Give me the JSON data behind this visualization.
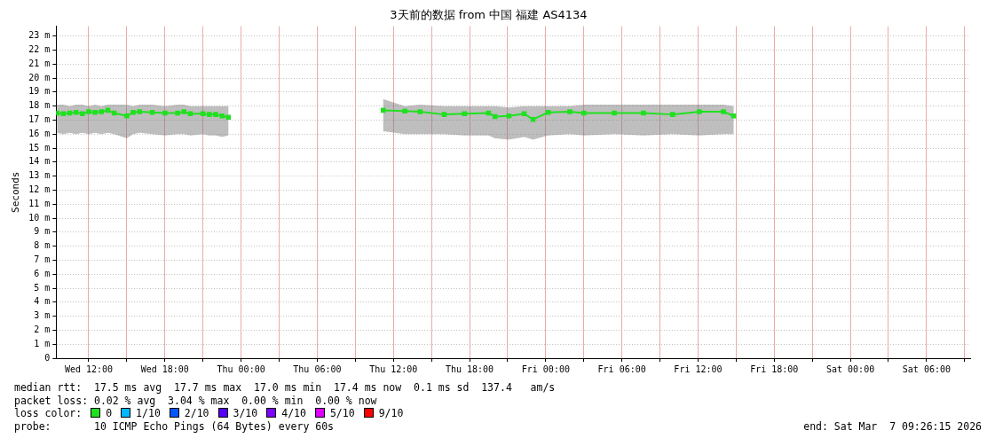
{
  "chart_data": {
    "type": "line",
    "title": "3天前的数据 from 中国 福建 AS4134",
    "ylabel": "Seconds",
    "xlim": [
      "2026-03-04T09:26",
      "2026-03-07T09:26"
    ],
    "ylim": [
      0,
      23.7
    ],
    "yticks": [
      {
        "value": 0,
        "label": "0"
      },
      {
        "value": 1,
        "label": "1 m"
      },
      {
        "value": 2,
        "label": "2 m"
      },
      {
        "value": 3,
        "label": "3 m"
      },
      {
        "value": 4,
        "label": "4 m"
      },
      {
        "value": 5,
        "label": "5 m"
      },
      {
        "value": 6,
        "label": "6 m"
      },
      {
        "value": 7,
        "label": "7 m"
      },
      {
        "value": 8,
        "label": "8 m"
      },
      {
        "value": 9,
        "label": "9 m"
      },
      {
        "value": 10,
        "label": "10 m"
      },
      {
        "value": 11,
        "label": "11 m"
      },
      {
        "value": 12,
        "label": "12 m"
      },
      {
        "value": 13,
        "label": "13 m"
      },
      {
        "value": 14,
        "label": "14 m"
      },
      {
        "value": 15,
        "label": "15 m"
      },
      {
        "value": 16,
        "label": "16 m"
      },
      {
        "value": 17,
        "label": "17 m"
      },
      {
        "value": 18,
        "label": "18 m"
      },
      {
        "value": 19,
        "label": "19 m"
      },
      {
        "value": 20,
        "label": "20 m"
      },
      {
        "value": 21,
        "label": "21 m"
      },
      {
        "value": 22,
        "label": "22 m"
      },
      {
        "value": 23,
        "label": "23 m"
      }
    ],
    "xticks": [
      {
        "value": "2026-03-04T12:00",
        "label": "Wed 12:00"
      },
      {
        "value": "2026-03-04T15:00",
        "label": null
      },
      {
        "value": "2026-03-04T18:00",
        "label": "Wed 18:00"
      },
      {
        "value": "2026-03-04T21:00",
        "label": null
      },
      {
        "value": "2026-03-05T00:00",
        "label": "Thu 00:00"
      },
      {
        "value": "2026-03-05T03:00",
        "label": null
      },
      {
        "value": "2026-03-05T06:00",
        "label": "Thu 06:00"
      },
      {
        "value": "2026-03-05T09:00",
        "label": null
      },
      {
        "value": "2026-03-05T12:00",
        "label": "Thu 12:00"
      },
      {
        "value": "2026-03-05T15:00",
        "label": null
      },
      {
        "value": "2026-03-05T18:00",
        "label": "Thu 18:00"
      },
      {
        "value": "2026-03-05T21:00",
        "label": null
      },
      {
        "value": "2026-03-06T00:00",
        "label": "Fri 00:00"
      },
      {
        "value": "2026-03-06T03:00",
        "label": null
      },
      {
        "value": "2026-03-06T06:00",
        "label": "Fri 06:00"
      },
      {
        "value": "2026-03-06T09:00",
        "label": null
      },
      {
        "value": "2026-03-06T12:00",
        "label": "Fri 12:00"
      },
      {
        "value": "2026-03-06T15:00",
        "label": null
      },
      {
        "value": "2026-03-06T18:00",
        "label": "Fri 18:00"
      },
      {
        "value": "2026-03-06T21:00",
        "label": null
      },
      {
        "value": "2026-03-07T00:00",
        "label": "Sat 00:00"
      },
      {
        "value": "2026-03-07T03:00",
        "label": null
      },
      {
        "value": "2026-03-07T06:00",
        "label": "Sat 06:00"
      },
      {
        "value": "2026-03-07T09:00",
        "label": null
      }
    ],
    "grid": true,
    "legend": false,
    "marker": "square",
    "line_style": "solid",
    "series": [
      {
        "color": "#20e020",
        "x": [
          "2026-03-04T09:30",
          "2026-03-04T10:00",
          "2026-03-04T10:30",
          "2026-03-04T11:00",
          "2026-03-04T11:30",
          "2026-03-04T12:00",
          "2026-03-04T12:30",
          "2026-03-04T13:00",
          "2026-03-04T13:30",
          "2026-03-04T14:00",
          "2026-03-04T15:00",
          "2026-03-04T15:30",
          "2026-03-04T16:00",
          "2026-03-04T17:00",
          "2026-03-04T18:00",
          "2026-03-04T19:00",
          "2026-03-04T19:30",
          "2026-03-04T20:00",
          "2026-03-04T21:00",
          "2026-03-04T21:30",
          "2026-03-04T22:00",
          "2026-03-04T22:30",
          "2026-03-04T23:00",
          "2026-03-05T05:00",
          "2026-03-05T11:12",
          "2026-03-05T12:54",
          "2026-03-05T14:06",
          "2026-03-05T16:00",
          "2026-03-05T17:36",
          "2026-03-05T19:30",
          "2026-03-05T20:00",
          "2026-03-05T21:06",
          "2026-03-05T22:18",
          "2026-03-05T23:00",
          "2026-03-06T00:12",
          "2026-03-06T01:54",
          "2026-03-06T03:00",
          "2026-03-06T05:24",
          "2026-03-06T07:42",
          "2026-03-06T10:00",
          "2026-03-06T12:06",
          "2026-03-06T14:00",
          "2026-03-06T14:48"
        ],
        "values": [
          17.5,
          17.45,
          17.5,
          17.55,
          17.45,
          17.6,
          17.55,
          17.6,
          17.7,
          17.5,
          17.3,
          17.55,
          17.6,
          17.55,
          17.5,
          17.5,
          17.6,
          17.45,
          17.45,
          17.4,
          17.4,
          17.3,
          17.2,
          null,
          17.7,
          17.65,
          17.6,
          17.4,
          17.45,
          17.5,
          17.25,
          17.3,
          17.45,
          17.05,
          17.55,
          17.6,
          17.5,
          17.5,
          17.5,
          17.4,
          17.6,
          17.6,
          17.3
        ],
        "lower": [
          16.1,
          16.0,
          16.1,
          16.0,
          16.1,
          16.0,
          16.1,
          16.0,
          16.1,
          16.0,
          15.7,
          16.0,
          16.1,
          16.0,
          15.9,
          16.0,
          16.0,
          15.9,
          16.0,
          15.9,
          15.9,
          15.8,
          15.9,
          null,
          16.2,
          16.0,
          16.0,
          16.0,
          15.9,
          15.9,
          15.7,
          15.6,
          15.8,
          15.6,
          15.9,
          16.0,
          15.9,
          16.0,
          15.9,
          16.0,
          15.9,
          16.0,
          16.0
        ],
        "upper": [
          18.1,
          18.1,
          18.0,
          18.1,
          18.1,
          18.0,
          18.1,
          18.0,
          18.1,
          18.1,
          18.1,
          18.0,
          18.1,
          18.1,
          18.0,
          18.1,
          18.1,
          18.0,
          18.0,
          18.0,
          18.0,
          18.0,
          18.0,
          null,
          18.5,
          18.0,
          18.1,
          18.0,
          18.0,
          18.0,
          18.0,
          17.9,
          18.0,
          18.0,
          18.0,
          18.0,
          18.1,
          18.1,
          18.1,
          18.1,
          18.1,
          18.1,
          18.0
        ]
      }
    ],
    "annotations": [
      "median rtt:  17.5 ms avg  17.7 ms max  17.0 ms min  17.4 ms now  0.1 ms sd  137.4   am/s",
      "packet loss: 0.02 % avg  3.04 % max  0.00 % min  0.00 % now",
      "loss color:",
      "0",
      "1/10",
      "2/10",
      "3/10",
      "4/10",
      "5/10",
      "9/10",
      "probe:       10 ICMP Echo Pings (64 Bytes) every 60s",
      "end: Sat Mar  7 09:26:15 2026"
    ]
  }
}
